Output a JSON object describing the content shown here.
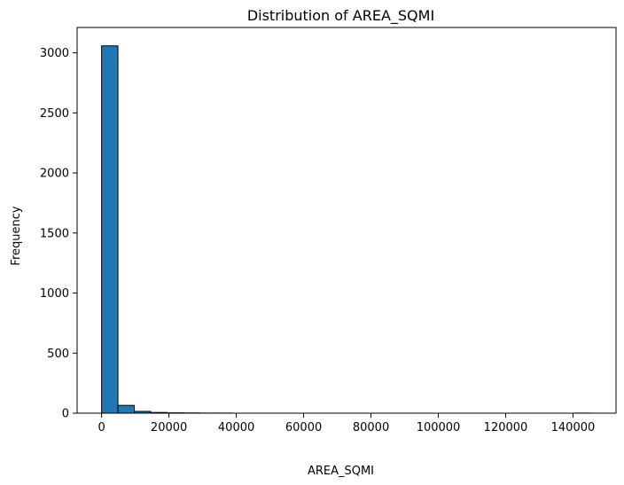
{
  "chart_data": {
    "type": "bar",
    "title": "Distribution of AREA_SQMI",
    "xlabel": "AREA_SQMI",
    "ylabel": "Frequency",
    "bin_start": 0,
    "bin_width": 4850,
    "counts": [
      3058,
      65,
      15,
      6,
      3,
      2,
      1,
      1,
      0,
      0,
      0,
      0,
      0,
      0,
      0,
      0,
      0,
      0,
      0,
      0,
      0,
      0,
      0,
      0,
      0,
      0,
      0,
      0,
      0,
      1
    ],
    "xlim": [
      -7275,
      152775
    ],
    "ylim": [
      0,
      3211
    ],
    "xticks": [
      0,
      20000,
      40000,
      60000,
      80000,
      100000,
      120000,
      140000
    ],
    "xtick_labels": [
      "0",
      "20000",
      "40000",
      "60000",
      "80000",
      "100000",
      "120000",
      "140000"
    ],
    "yticks": [
      0,
      500,
      1000,
      1500,
      2000,
      2500,
      3000
    ],
    "ytick_labels": [
      "0",
      "500",
      "1000",
      "1500",
      "2000",
      "2500",
      "3000"
    ],
    "grid": false,
    "bar_color": "#1f77b4",
    "edge_color": "#000000"
  }
}
